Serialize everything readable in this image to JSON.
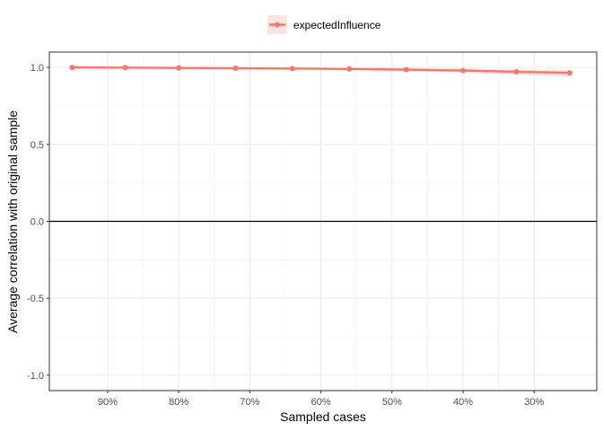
{
  "chart_data": {
    "type": "line",
    "title": "",
    "xlabel": "Sampled cases",
    "ylabel": "Average correlation with original sample",
    "x_reversed": true,
    "x_ticks": [
      {
        "value": 0.9,
        "label": "90%"
      },
      {
        "value": 0.8,
        "label": "80%"
      },
      {
        "value": 0.7,
        "label": "70%"
      },
      {
        "value": 0.6,
        "label": "60%"
      },
      {
        "value": 0.5,
        "label": "50%"
      },
      {
        "value": 0.4,
        "label": "40%"
      },
      {
        "value": 0.3,
        "label": "30%"
      }
    ],
    "y_ticks": [
      {
        "value": 1.0,
        "label": "1.0"
      },
      {
        "value": 0.5,
        "label": "0.5"
      },
      {
        "value": 0.0,
        "label": "0.0"
      },
      {
        "value": -0.5,
        "label": "-0.5"
      },
      {
        "value": -1.0,
        "label": "-1.0"
      }
    ],
    "xlim": [
      0.982,
      0.212
    ],
    "ylim": [
      -1.1,
      1.1
    ],
    "hline": 0,
    "grid": true,
    "legend_position": "top",
    "series": [
      {
        "name": "expectedInfluence",
        "color": "#f8766d",
        "band_color": "#fde4e2",
        "x": [
          0.95,
          0.875,
          0.8,
          0.72,
          0.64,
          0.56,
          0.48,
          0.4,
          0.325,
          0.25
        ],
        "y": [
          1.0,
          0.999,
          0.997,
          0.995,
          0.993,
          0.99,
          0.986,
          0.98,
          0.972,
          0.965
        ],
        "lower": [
          0.999,
          0.997,
          0.994,
          0.991,
          0.987,
          0.982,
          0.975,
          0.966,
          0.953,
          0.94
        ],
        "upper": [
          1.0,
          1.0,
          1.0,
          0.999,
          0.998,
          0.997,
          0.995,
          0.992,
          0.988,
          0.984
        ]
      }
    ]
  }
}
